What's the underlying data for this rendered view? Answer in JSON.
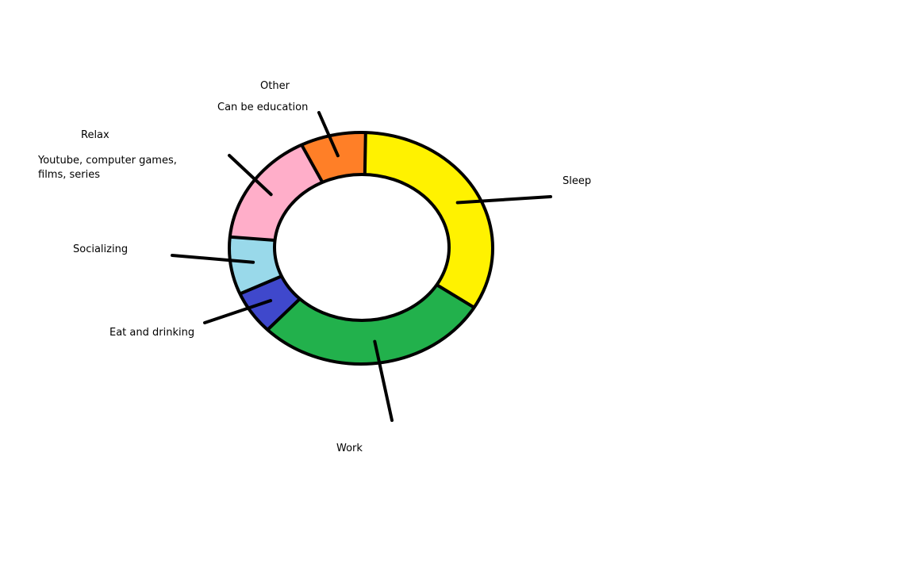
{
  "chart_data": {
    "type": "pie",
    "title": "",
    "legend": "none",
    "slices": [
      {
        "label": "Sleep",
        "value": 33,
        "color": "#fff200",
        "note": ""
      },
      {
        "label": "Work",
        "value": 29,
        "color": "#22b14c",
        "note": ""
      },
      {
        "label": "Eat and drinking",
        "value": 6,
        "color": "#3f48cc",
        "note": ""
      },
      {
        "label": "Socializing",
        "value": 8,
        "color": "#99d9ea",
        "note": ""
      },
      {
        "label": "Relax",
        "value": 16,
        "color": "#ffaec9",
        "note": "Youtube, computer games, films, series"
      },
      {
        "label": "Other",
        "value": 8,
        "color": "#ff7f27",
        "note": "Can be education"
      }
    ]
  }
}
